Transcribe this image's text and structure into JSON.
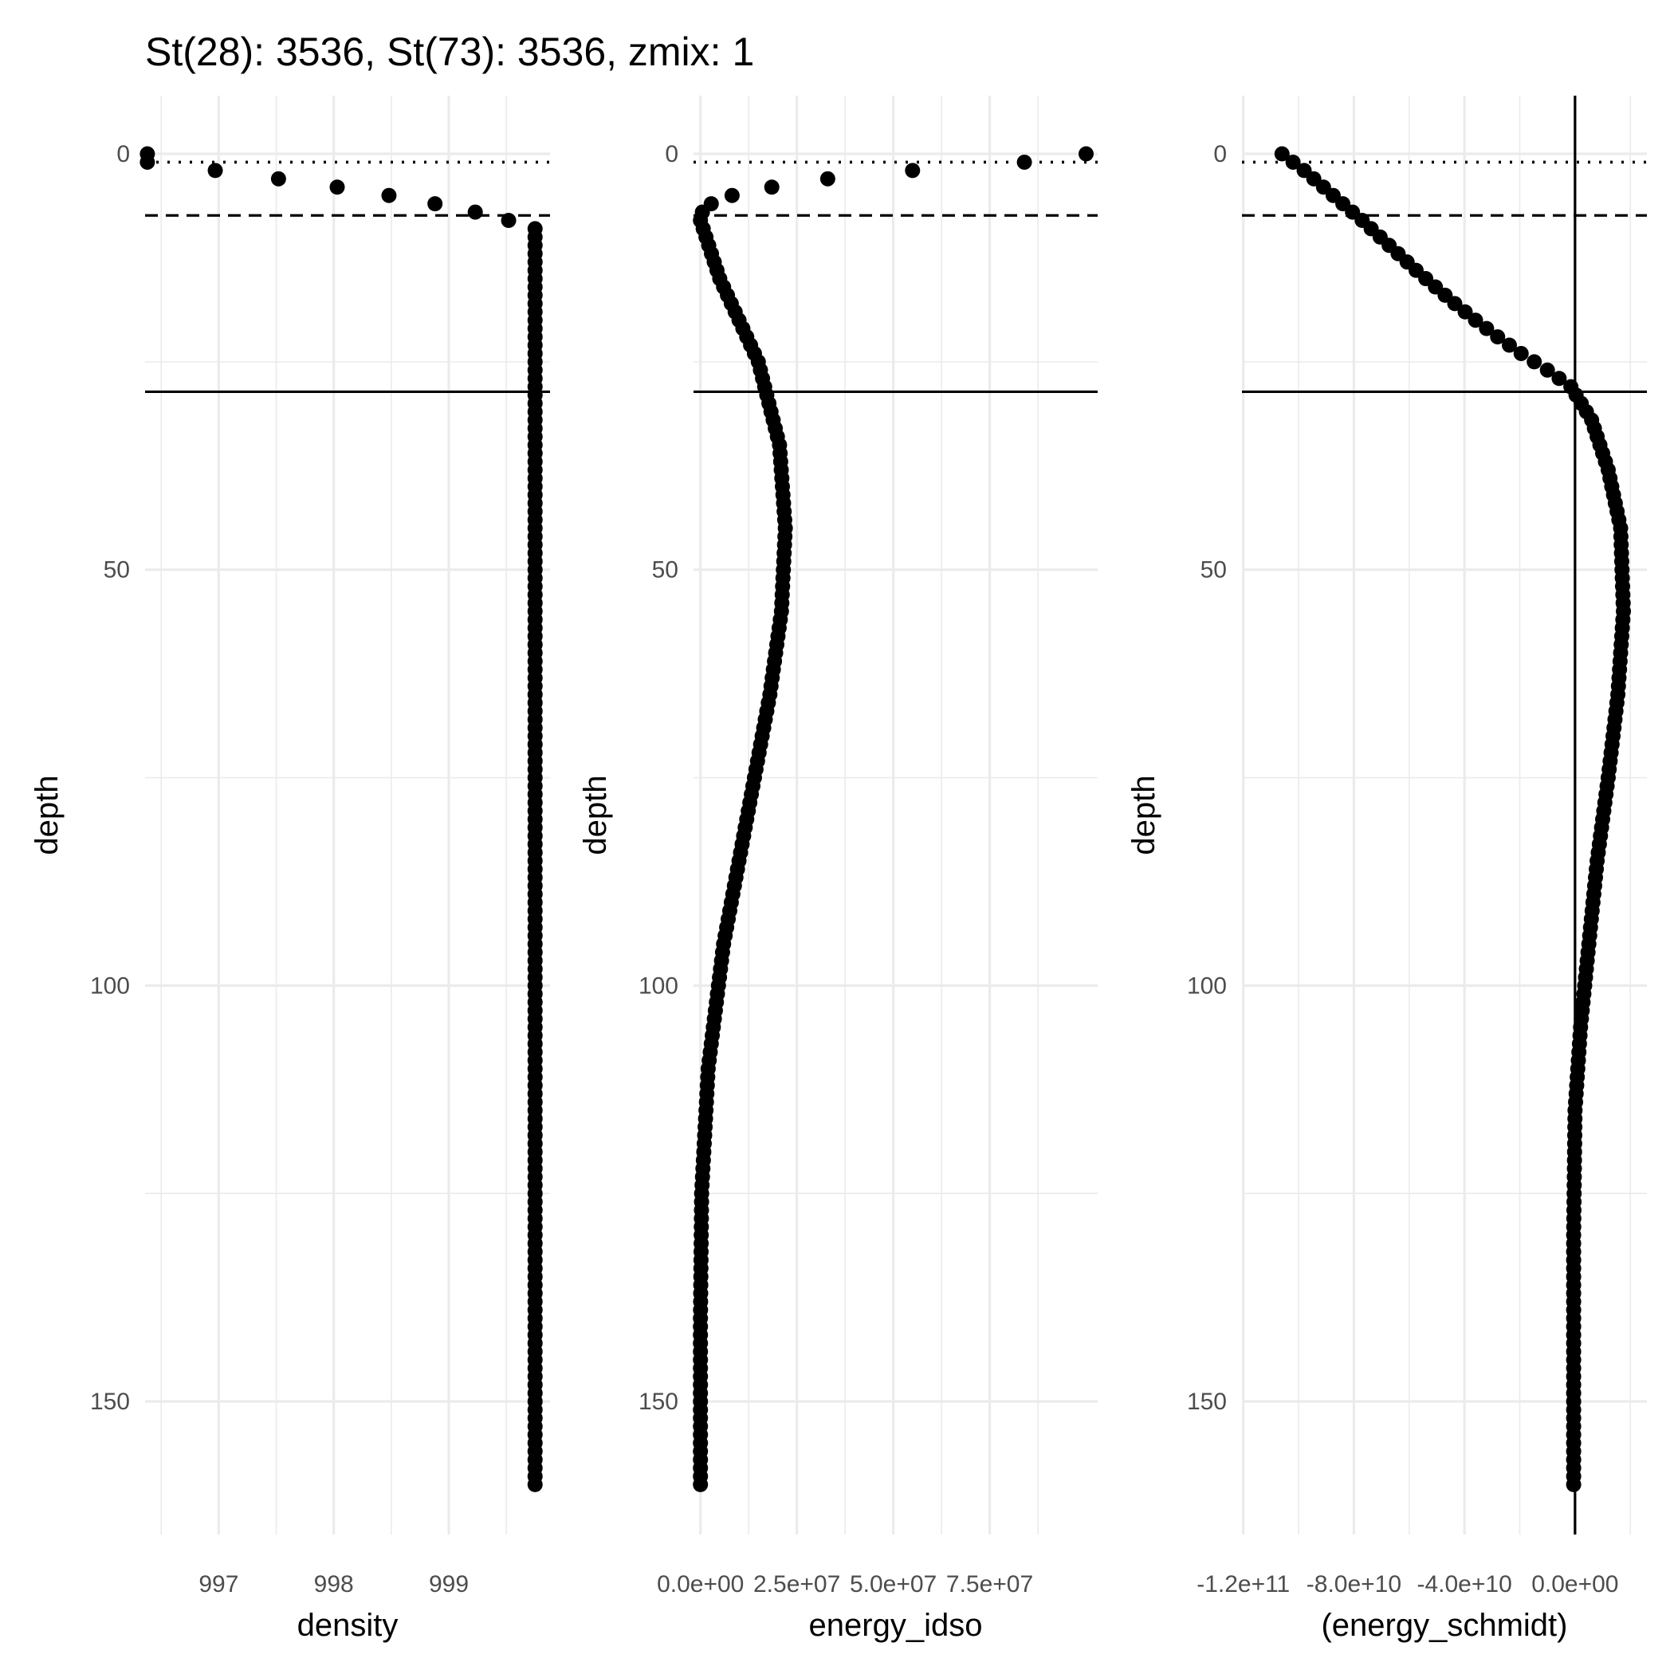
{
  "title": "St(28): 3536, St(73): 3536, zmix: 1",
  "chart_data": [
    {
      "type": "scatter",
      "panel": 1,
      "xlabel": "density",
      "ylabel": "depth",
      "y_reversed": true,
      "xlim": [
        996.36,
        999.88
      ],
      "ylim": [
        -7,
        166
      ],
      "x_ticks": [
        997,
        998,
        999
      ],
      "x_tick_labels": [
        "997",
        "998",
        "999"
      ],
      "x_minor_ticks": [
        996.5,
        997.5,
        998.5,
        999.5
      ],
      "y_ticks": [
        0,
        50,
        100,
        150
      ],
      "y_tick_labels": [
        "0",
        "50",
        "100",
        "150"
      ],
      "y_minor_ticks": [
        25,
        75,
        125
      ],
      "reference_lines": [
        {
          "orientation": "horizontal",
          "value": 1,
          "style": "dotted"
        },
        {
          "orientation": "horizontal",
          "value": 7.4,
          "style": "dashed"
        },
        {
          "orientation": "horizontal",
          "value": 28.6,
          "style": "solid"
        }
      ],
      "series_profile": {
        "depth_start": 0,
        "depth_end": 160,
        "depth_step": 1,
        "surface_points": [
          {
            "depth": 0,
            "x": 996.38
          },
          {
            "depth": 1,
            "x": 996.38
          },
          {
            "depth": 2,
            "x": 996.97
          },
          {
            "depth": 3,
            "x": 997.52
          },
          {
            "depth": 4,
            "x": 998.03
          },
          {
            "depth": 5,
            "x": 998.48
          },
          {
            "depth": 6,
            "x": 998.88
          },
          {
            "depth": 7,
            "x": 999.23
          },
          {
            "depth": 8,
            "x": 999.52
          }
        ],
        "deep_value": 999.75
      }
    },
    {
      "type": "scatter",
      "panel": 2,
      "xlabel": "energy_idso",
      "ylabel": "depth",
      "y_reversed": true,
      "xlim": [
        -1800000.0,
        103000000.0
      ],
      "ylim": [
        -7,
        166
      ],
      "x_ticks": [
        0,
        25000000,
        50000000,
        75000000
      ],
      "x_tick_labels": [
        "0.0e+00",
        "2.5e+07",
        "5.0e+07",
        "7.5e+07"
      ],
      "x_minor_ticks": [
        12500000,
        37500000,
        62500000,
        87500000
      ],
      "y_ticks": [
        0,
        50,
        100,
        150
      ],
      "y_tick_labels": [
        "0",
        "50",
        "100",
        "150"
      ],
      "y_minor_ticks": [
        25,
        75,
        125
      ],
      "reference_lines": [
        {
          "orientation": "horizontal",
          "value": 1,
          "style": "dotted"
        },
        {
          "orientation": "horizontal",
          "value": 7.4,
          "style": "dashed"
        },
        {
          "orientation": "horizontal",
          "value": 28.6,
          "style": "solid"
        }
      ],
      "series_profile": {
        "depth_start": 0,
        "depth_end": 160,
        "depth_step": 1,
        "points": [
          {
            "depth": 0,
            "x": 100000000
          },
          {
            "depth": 1,
            "x": 84000000
          },
          {
            "depth": 2,
            "x": 55000000
          },
          {
            "depth": 3,
            "x": 33000000
          },
          {
            "depth": 4,
            "x": 18500000
          },
          {
            "depth": 5,
            "x": 8200000
          },
          {
            "depth": 6,
            "x": 2800000
          },
          {
            "depth": 7,
            "x": 500000
          },
          {
            "depth": 8,
            "x": 0
          }
        ],
        "curve_knots": [
          {
            "depth": 8,
            "x": 0
          },
          {
            "depth": 15,
            "x": 5000000
          },
          {
            "depth": 25,
            "x": 15000000
          },
          {
            "depth": 35,
            "x": 20500000
          },
          {
            "depth": 45,
            "x": 22000000
          },
          {
            "depth": 55,
            "x": 21000000
          },
          {
            "depth": 65,
            "x": 18000000
          },
          {
            "depth": 80,
            "x": 12000000
          },
          {
            "depth": 95,
            "x": 6000000
          },
          {
            "depth": 110,
            "x": 2000000
          },
          {
            "depth": 125,
            "x": 300000
          },
          {
            "depth": 140,
            "x": 0
          },
          {
            "depth": 160,
            "x": 0
          }
        ]
      }
    },
    {
      "type": "scatter",
      "panel": 3,
      "xlabel": "(energy_schmidt)",
      "ylabel": "depth",
      "y_reversed": true,
      "xlim": [
        -120500000000.0,
        26000000000.0
      ],
      "ylim": [
        -7,
        166
      ],
      "x_ticks": [
        -120000000000.0,
        -80000000000.0,
        -40000000000.0,
        0
      ],
      "x_tick_labels": [
        "-1.2e+11",
        "-8.0e+10",
        "-4.0e+10",
        "0.0e+00"
      ],
      "x_minor_ticks": [
        -100000000000.0,
        -60000000000.0,
        -20000000000.0,
        20000000000.0
      ],
      "y_ticks": [
        0,
        50,
        100,
        150
      ],
      "y_tick_labels": [
        "0",
        "50",
        "100",
        "150"
      ],
      "y_minor_ticks": [
        25,
        75,
        125
      ],
      "reference_lines": [
        {
          "orientation": "horizontal",
          "value": 1,
          "style": "dotted"
        },
        {
          "orientation": "horizontal",
          "value": 7.4,
          "style": "dashed"
        },
        {
          "orientation": "horizontal",
          "value": 28.6,
          "style": "solid"
        },
        {
          "orientation": "vertical",
          "value": 0,
          "style": "solid"
        }
      ],
      "series_profile": {
        "depth_start": 0,
        "depth_end": 160,
        "depth_step": 1,
        "curve_knots": [
          {
            "depth": 0,
            "x": -106000000000.0
          },
          {
            "depth": 1,
            "x": -102000000000.0
          },
          {
            "depth": 2,
            "x": -98000000000.0
          },
          {
            "depth": 3,
            "x": -94500000000.0
          },
          {
            "depth": 4,
            "x": -91000000000.0
          },
          {
            "depth": 5,
            "x": -87500000000.0
          },
          {
            "depth": 6,
            "x": -84000000000.0
          },
          {
            "depth": 7,
            "x": -80500000000.0
          },
          {
            "depth": 8,
            "x": -77000000000.0
          },
          {
            "depth": 10,
            "x": -70500000000.0
          },
          {
            "depth": 12,
            "x": -64000000000.0
          },
          {
            "depth": 14,
            "x": -57500000000.0
          },
          {
            "depth": 16,
            "x": -50500000000.0
          },
          {
            "depth": 18,
            "x": -43500000000.0
          },
          {
            "depth": 20,
            "x": -36000000000.0
          },
          {
            "depth": 22,
            "x": -28000000000.0
          },
          {
            "depth": 24,
            "x": -19500000000.0
          },
          {
            "depth": 26,
            "x": -10000000000.0
          },
          {
            "depth": 28,
            "x": -1500000000.0
          },
          {
            "depth": 32,
            "x": 6000000000.0
          },
          {
            "depth": 38,
            "x": 12000000000.0
          },
          {
            "depth": 45,
            "x": 16500000000.0
          },
          {
            "depth": 55,
            "x": 17500000000.0
          },
          {
            "depth": 65,
            "x": 15500000000.0
          },
          {
            "depth": 75,
            "x": 12000000000.0
          },
          {
            "depth": 85,
            "x": 8000000000.0
          },
          {
            "depth": 95,
            "x": 5000000000.0
          },
          {
            "depth": 105,
            "x": 2000000000.0
          },
          {
            "depth": 115,
            "x": 0
          },
          {
            "depth": 130,
            "x": -500000000.0
          },
          {
            "depth": 160,
            "x": -500000000.0
          }
        ]
      }
    }
  ]
}
